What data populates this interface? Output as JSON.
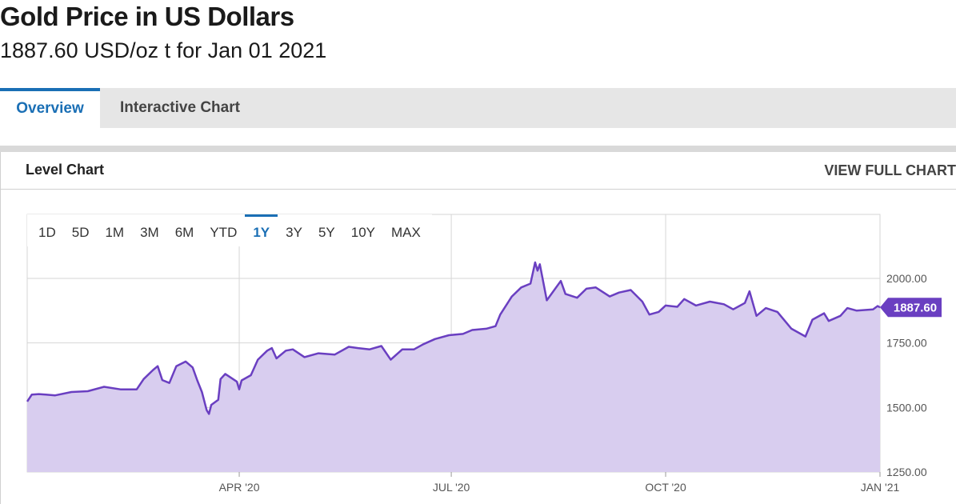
{
  "header": {
    "title": "Gold Price in US Dollars",
    "subtitle": "1887.60 USD/oz t for Jan 01 2021"
  },
  "tabs": [
    {
      "label": "Overview",
      "active": true
    },
    {
      "label": "Interactive Chart",
      "active": false
    }
  ],
  "panel": {
    "title": "Level Chart",
    "view_full_chart_label": "VIEW FULL CHART"
  },
  "range_buttons": [
    {
      "label": "1D",
      "active": false
    },
    {
      "label": "5D",
      "active": false
    },
    {
      "label": "1M",
      "active": false
    },
    {
      "label": "3M",
      "active": false
    },
    {
      "label": "6M",
      "active": false
    },
    {
      "label": "YTD",
      "active": false
    },
    {
      "label": "1Y",
      "active": true
    },
    {
      "label": "3Y",
      "active": false
    },
    {
      "label": "5Y",
      "active": false
    },
    {
      "label": "10Y",
      "active": false
    },
    {
      "label": "MAX",
      "active": false
    }
  ],
  "colors": {
    "line": "#6a3fc1",
    "area": "#d8cdef",
    "accent": "#1a6fb5",
    "badge": "#6a3fc1",
    "grid": "#d6d6d6"
  },
  "chart_data": {
    "type": "area",
    "title": "",
    "xlabel": "",
    "ylabel": "",
    "ylim": [
      1250,
      2000
    ],
    "yticks": [
      "2000.00",
      "1750.00",
      "1500.00",
      "1250.00"
    ],
    "xticks": [
      {
        "label": "APR '20",
        "date": "2020-04-01"
      },
      {
        "label": "JUL '20",
        "date": "2020-07-01"
      },
      {
        "label": "OCT '20",
        "date": "2020-10-01"
      },
      {
        "label": "JAN '21",
        "date": "2021-01-01"
      }
    ],
    "xlim": [
      "2020-01-01",
      "2021-01-01"
    ],
    "last_value_label": "1887.60",
    "series": [
      {
        "values": [
          [
            "2020-01-01",
            1523
          ],
          [
            "2020-01-03",
            1550
          ],
          [
            "2020-01-06",
            1552
          ],
          [
            "2020-01-09",
            1550
          ],
          [
            "2020-01-13",
            1547
          ],
          [
            "2020-01-20",
            1560
          ],
          [
            "2020-01-27",
            1563
          ],
          [
            "2020-02-03",
            1580
          ],
          [
            "2020-02-10",
            1570
          ],
          [
            "2020-02-17",
            1570
          ],
          [
            "2020-02-20",
            1610
          ],
          [
            "2020-02-24",
            1645
          ],
          [
            "2020-02-26",
            1660
          ],
          [
            "2020-02-28",
            1606
          ],
          [
            "2020-03-02",
            1595
          ],
          [
            "2020-03-05",
            1660
          ],
          [
            "2020-03-09",
            1678
          ],
          [
            "2020-03-12",
            1655
          ],
          [
            "2020-03-14",
            1605
          ],
          [
            "2020-03-16",
            1560
          ],
          [
            "2020-03-18",
            1490
          ],
          [
            "2020-03-19",
            1475
          ],
          [
            "2020-03-20",
            1510
          ],
          [
            "2020-03-23",
            1530
          ],
          [
            "2020-03-24",
            1610
          ],
          [
            "2020-03-26",
            1630
          ],
          [
            "2020-03-31",
            1600
          ],
          [
            "2020-04-01",
            1570
          ],
          [
            "2020-04-02",
            1605
          ],
          [
            "2020-04-06",
            1625
          ],
          [
            "2020-04-09",
            1685
          ],
          [
            "2020-04-13",
            1720
          ],
          [
            "2020-04-15",
            1730
          ],
          [
            "2020-04-17",
            1690
          ],
          [
            "2020-04-21",
            1720
          ],
          [
            "2020-04-24",
            1725
          ],
          [
            "2020-04-29",
            1695
          ],
          [
            "2020-05-05",
            1710
          ],
          [
            "2020-05-12",
            1705
          ],
          [
            "2020-05-18",
            1735
          ],
          [
            "2020-05-22",
            1730
          ],
          [
            "2020-05-27",
            1725
          ],
          [
            "2020-06-01",
            1738
          ],
          [
            "2020-06-05",
            1685
          ],
          [
            "2020-06-10",
            1725
          ],
          [
            "2020-06-15",
            1725
          ],
          [
            "2020-06-19",
            1745
          ],
          [
            "2020-06-24",
            1765
          ],
          [
            "2020-06-30",
            1780
          ],
          [
            "2020-07-06",
            1785
          ],
          [
            "2020-07-10",
            1800
          ],
          [
            "2020-07-16",
            1805
          ],
          [
            "2020-07-20",
            1815
          ],
          [
            "2020-07-22",
            1860
          ],
          [
            "2020-07-27",
            1930
          ],
          [
            "2020-07-31",
            1965
          ],
          [
            "2020-08-04",
            1980
          ],
          [
            "2020-08-06",
            2062
          ],
          [
            "2020-08-07",
            2030
          ],
          [
            "2020-08-08",
            2055
          ],
          [
            "2020-08-11",
            1915
          ],
          [
            "2020-08-13",
            1940
          ],
          [
            "2020-08-17",
            1990
          ],
          [
            "2020-08-19",
            1940
          ],
          [
            "2020-08-24",
            1925
          ],
          [
            "2020-08-28",
            1960
          ],
          [
            "2020-09-01",
            1965
          ],
          [
            "2020-09-07",
            1930
          ],
          [
            "2020-09-11",
            1945
          ],
          [
            "2020-09-16",
            1955
          ],
          [
            "2020-09-21",
            1910
          ],
          [
            "2020-09-24",
            1860
          ],
          [
            "2020-09-28",
            1870
          ],
          [
            "2020-10-01",
            1895
          ],
          [
            "2020-10-06",
            1890
          ],
          [
            "2020-10-09",
            1920
          ],
          [
            "2020-10-14",
            1895
          ],
          [
            "2020-10-20",
            1910
          ],
          [
            "2020-10-26",
            1900
          ],
          [
            "2020-10-30",
            1880
          ],
          [
            "2020-11-04",
            1905
          ],
          [
            "2020-11-06",
            1950
          ],
          [
            "2020-11-09",
            1855
          ],
          [
            "2020-11-13",
            1885
          ],
          [
            "2020-11-18",
            1870
          ],
          [
            "2020-11-24",
            1805
          ],
          [
            "2020-11-30",
            1775
          ],
          [
            "2020-12-03",
            1840
          ],
          [
            "2020-12-08",
            1865
          ],
          [
            "2020-12-10",
            1835
          ],
          [
            "2020-12-15",
            1855
          ],
          [
            "2020-12-18",
            1885
          ],
          [
            "2020-12-22",
            1875
          ],
          [
            "2020-12-29",
            1880
          ],
          [
            "2020-12-31",
            1893
          ],
          [
            "2021-01-01",
            1887.6
          ]
        ]
      }
    ]
  }
}
